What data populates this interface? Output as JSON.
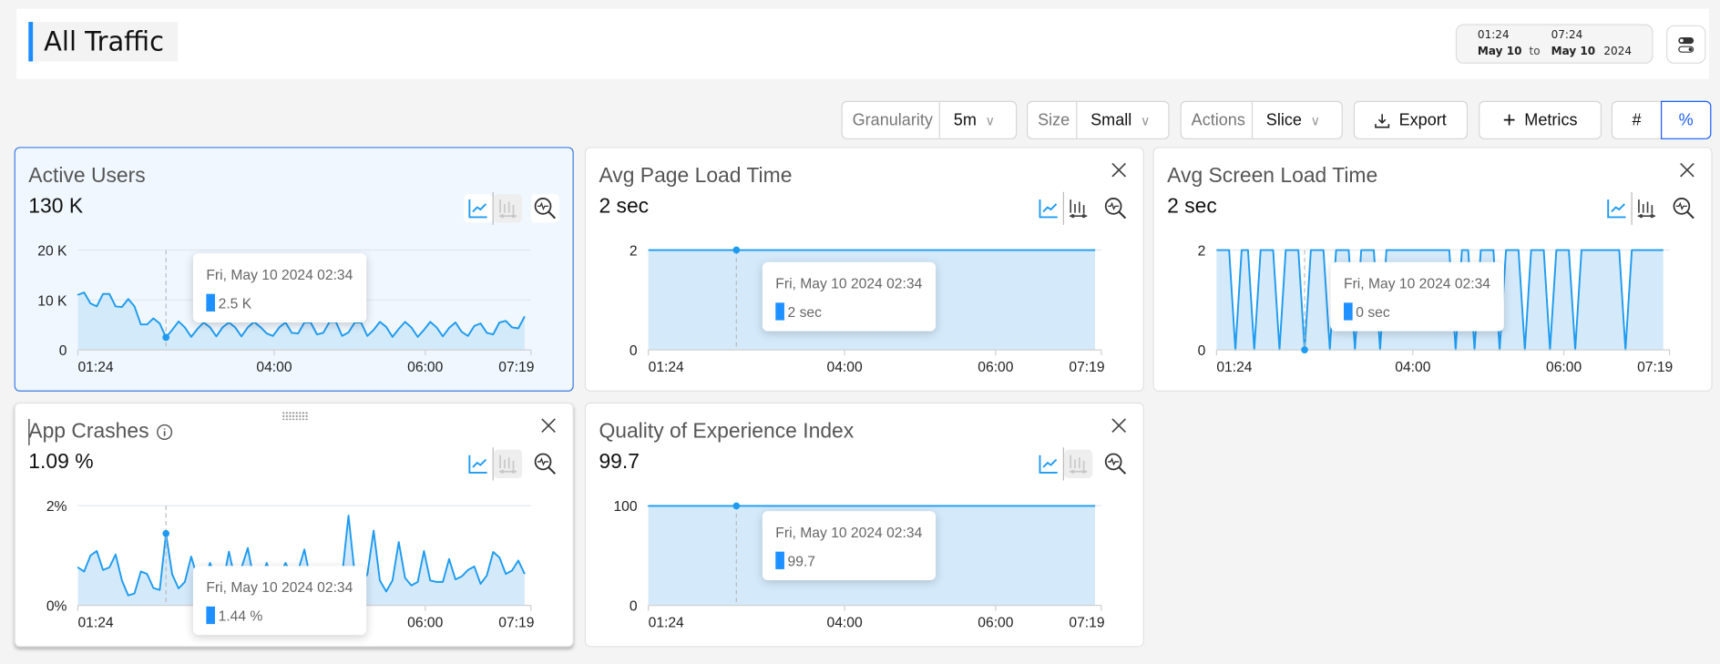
{
  "header": {
    "title": "All Traffic",
    "date_range": {
      "from_time": "01:24",
      "from_date": "May 10",
      "to_label": "to",
      "to_time": "07:24",
      "to_date": "May 10",
      "year": "2024"
    },
    "settings_icon": "toggle-settings-icon"
  },
  "toolbar": {
    "granularity": {
      "label": "Granularity",
      "value": "5m"
    },
    "size": {
      "label": "Size",
      "value": "Small"
    },
    "actions": {
      "label": "Actions",
      "value": "Slice"
    },
    "export_label": "Export",
    "metrics_label": "Metrics",
    "count_label": "#",
    "percent_label": "%",
    "active_mode": "%",
    "accent": "#1a5cff"
  },
  "cards": [
    {
      "title": "Active Users",
      "value": "130 K",
      "tooltip": {
        "date": "Fri, May 10 2024 02:34",
        "value": "2.5 K"
      },
      "selected": true,
      "closable": false
    },
    {
      "title": "Avg Page Load Time",
      "value": "2 sec",
      "tooltip": {
        "date": "Fri, May 10 2024 02:34",
        "value": "2 sec"
      },
      "closable": true
    },
    {
      "title": "Avg Screen Load Time",
      "value": "2 sec",
      "tooltip": {
        "date": "Fri, May 10 2024 02:34",
        "value": "0 sec"
      },
      "closable": true
    },
    {
      "title": "App Crashes",
      "value": "1.09 %",
      "tooltip": {
        "date": "Fri, May 10 2024 02:34",
        "value": "1.44 %"
      },
      "closable": true,
      "info": true
    },
    {
      "title": "Quality of Experience Index",
      "value": "99.7",
      "tooltip": {
        "date": "Fri, May 10 2024 02:34",
        "value": "99.7"
      },
      "closable": true
    }
  ],
  "colors": {
    "line": "#1e9bf0",
    "fill": "#cfe8fb",
    "grid": "#e3e8f0",
    "selected_border": "#3a7be0"
  },
  "chart_data": [
    {
      "type": "area",
      "x_start": "01:24",
      "interval": "5m",
      "xticks": [
        "01:24",
        "04:00",
        "06:00",
        "07:19"
      ],
      "yticks": [
        {
          "v": 0,
          "label": "0"
        },
        {
          "v": 10000,
          "label": "10 K"
        },
        {
          "v": 20000,
          "label": "20 K"
        }
      ],
      "ylim": [
        0,
        20000
      ],
      "highlight_time": "02:34",
      "values": [
        11000,
        11500,
        9300,
        8700,
        11200,
        11200,
        8700,
        8600,
        10200,
        8700,
        5100,
        5100,
        6300,
        5300,
        2500,
        4000,
        5700,
        4500,
        2600,
        4200,
        5500,
        4500,
        2700,
        4500,
        5500,
        4500,
        2700,
        4500,
        5600,
        4600,
        3300,
        2800,
        4500,
        5500,
        3400,
        3300,
        5500,
        5500,
        3100,
        3400,
        5600,
        5600,
        2800,
        3500,
        5500,
        5500,
        2800,
        4000,
        5600,
        4600,
        2600,
        4200,
        5600,
        4500,
        2600,
        4000,
        5600,
        4500,
        2700,
        4400,
        5500,
        3600,
        2800,
        4800,
        5300,
        3400,
        3100,
        5500,
        5800,
        4500,
        4300,
        6700
      ]
    },
    {
      "type": "area",
      "x_start": "01:24",
      "interval": "5m",
      "xticks": [
        "01:24",
        "04:00",
        "06:00",
        "07:19"
      ],
      "yticks": [
        {
          "v": 0,
          "label": "0"
        },
        {
          "v": 2,
          "label": "2"
        }
      ],
      "ylim": [
        0,
        2
      ],
      "highlight_time": "02:34",
      "values": [
        2,
        2,
        2,
        2,
        2,
        2,
        2,
        2,
        2,
        2,
        2,
        2,
        2,
        2,
        2,
        2,
        2,
        2,
        2,
        2,
        2,
        2,
        2,
        2,
        2,
        2,
        2,
        2,
        2,
        2,
        2,
        2,
        2,
        2,
        2,
        2,
        2,
        2,
        2,
        2,
        2,
        2,
        2,
        2,
        2,
        2,
        2,
        2,
        2,
        2,
        2,
        2,
        2,
        2,
        2,
        2,
        2,
        2,
        2,
        2,
        2,
        2,
        2,
        2,
        2,
        2,
        2,
        2,
        2,
        2,
        2,
        2
      ]
    },
    {
      "type": "area",
      "x_start": "01:24",
      "interval": "5m",
      "xticks": [
        "01:24",
        "04:00",
        "06:00",
        "07:19"
      ],
      "yticks": [
        {
          "v": 0,
          "label": "0"
        },
        {
          "v": 2,
          "label": "2"
        }
      ],
      "ylim": [
        0,
        2
      ],
      "highlight_time": "02:34",
      "values": [
        2,
        2,
        2,
        0,
        2,
        2,
        0,
        2,
        2,
        2,
        0,
        2,
        2,
        2,
        0,
        2,
        2,
        2,
        0,
        2,
        2,
        2,
        0,
        2,
        2,
        2,
        0,
        2,
        2,
        2,
        2,
        2,
        2,
        2,
        2,
        2,
        2,
        2,
        0,
        2,
        2,
        0,
        2,
        2,
        2,
        0,
        2,
        2,
        2,
        0,
        2,
        2,
        2,
        0,
        2,
        2,
        2,
        0,
        2,
        2,
        2,
        2,
        2,
        2,
        2,
        0,
        2,
        2,
        2,
        2,
        2,
        2
      ]
    },
    {
      "type": "area",
      "x_start": "01:24",
      "interval": "5m",
      "xticks": [
        "01:24",
        "04:00",
        "06:00",
        "07:19"
      ],
      "yticks": [
        {
          "v": 0,
          "label": "0%"
        },
        {
          "v": 2,
          "label": "2%"
        }
      ],
      "ylim": [
        0,
        2
      ],
      "highlight_time": "02:34",
      "values": [
        0.76,
        0.68,
        1.0,
        1.09,
        0.71,
        0.76,
        1.02,
        0.5,
        0.2,
        0.24,
        0.68,
        0.63,
        0.35,
        0.31,
        1.44,
        0.62,
        0.34,
        0.47,
        0.98,
        0.55,
        0.5,
        0.85,
        0.5,
        0.4,
        1.08,
        0.5,
        0.75,
        1.15,
        0.5,
        0.5,
        0.85,
        0.5,
        0.6,
        0.85,
        0.6,
        0.7,
        1.12,
        0.5,
        0.6,
        0.5,
        0.5,
        0.6,
        0.6,
        1.8,
        0.62,
        0.47,
        0.62,
        1.5,
        0.5,
        0.28,
        0.5,
        1.27,
        0.55,
        0.4,
        0.47,
        1.09,
        0.5,
        0.47,
        0.47,
        0.93,
        0.52,
        0.58,
        0.71,
        0.78,
        0.43,
        0.6,
        1.07,
        0.96,
        0.63,
        0.7,
        0.9,
        0.63
      ]
    },
    {
      "type": "area",
      "x_start": "01:24",
      "interval": "5m",
      "xticks": [
        "01:24",
        "04:00",
        "06:00",
        "07:19"
      ],
      "yticks": [
        {
          "v": 0,
          "label": "0"
        },
        {
          "v": 100,
          "label": "100"
        }
      ],
      "ylim": [
        0,
        100
      ],
      "highlight_time": "02:34",
      "values": [
        99.7,
        99.7,
        99.7,
        99.7,
        99.7,
        99.7,
        99.7,
        99.7,
        99.7,
        99.7,
        99.7,
        99.7,
        99.7,
        99.7,
        99.7,
        99.7,
        99.7,
        99.7,
        99.7,
        99.7,
        99.7,
        99.7,
        99.7,
        99.7,
        99.7,
        99.7,
        99.7,
        99.7,
        99.7,
        99.7,
        99.7,
        99.7,
        99.7,
        99.7,
        99.7,
        99.7,
        99.7,
        99.7,
        99.7,
        99.7,
        99.7,
        99.7,
        99.7,
        99.7,
        99.7,
        99.7,
        99.7,
        99.7,
        99.7,
        99.7,
        99.7,
        99.7,
        99.7,
        99.7,
        99.7,
        99.7,
        99.7,
        99.7,
        99.7,
        99.7,
        99.7,
        99.7,
        99.7,
        99.7,
        99.7,
        99.7,
        99.7,
        99.7,
        99.7,
        99.7,
        99.7,
        99.7
      ]
    }
  ]
}
